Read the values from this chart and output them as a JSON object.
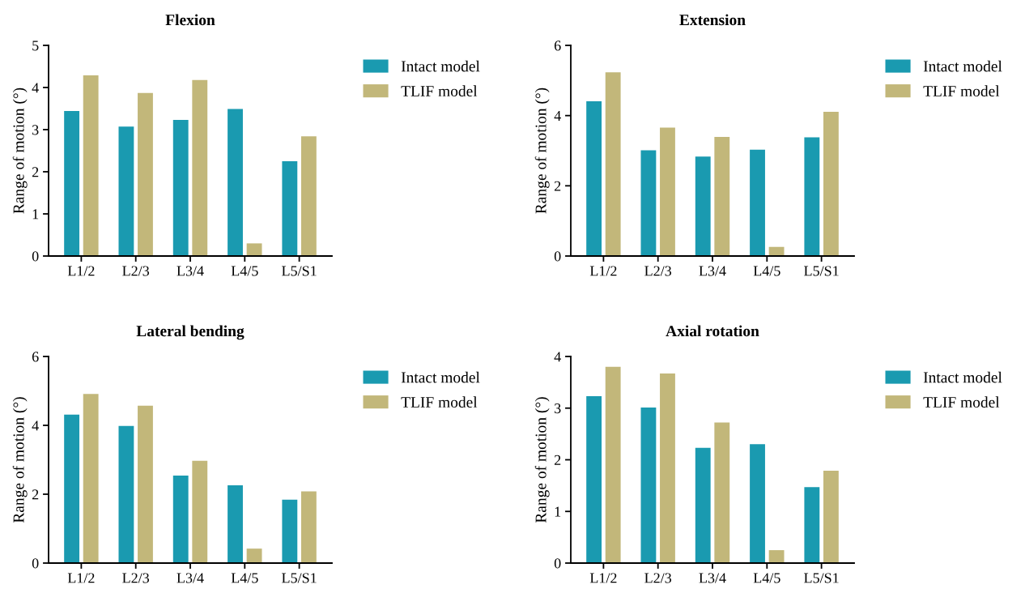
{
  "chart_data": [
    {
      "type": "bar",
      "title": "Flexion",
      "ylabel": "Range of motion (°)",
      "categories": [
        "L1/2",
        "L2/3",
        "L3/4",
        "L4/5",
        "L5/S1"
      ],
      "series": [
        {
          "name": "Intact model",
          "color": "#1a9ab0",
          "values": [
            3.44,
            3.07,
            3.23,
            3.49,
            2.25
          ]
        },
        {
          "name": "TLIF model",
          "color": "#c2b77a",
          "values": [
            4.29,
            3.87,
            4.18,
            0.3,
            2.84
          ]
        }
      ],
      "ylim": [
        0,
        5
      ],
      "yticks": [
        0,
        1,
        2,
        3,
        4,
        5
      ],
      "grid": false,
      "legend": "right"
    },
    {
      "type": "bar",
      "title": "Extension",
      "ylabel": "Range of motion (°)",
      "categories": [
        "L1/2",
        "L2/3",
        "L3/4",
        "L4/5",
        "L5/S1"
      ],
      "series": [
        {
          "name": "Intact model",
          "color": "#1a9ab0",
          "values": [
            4.41,
            3.01,
            2.83,
            3.03,
            3.38
          ]
        },
        {
          "name": "TLIF model",
          "color": "#c2b77a",
          "values": [
            5.23,
            3.66,
            3.39,
            0.26,
            4.11
          ]
        }
      ],
      "ylim": [
        0,
        6
      ],
      "yticks": [
        0,
        2,
        4,
        6
      ],
      "grid": false,
      "legend": "right"
    },
    {
      "type": "bar",
      "title": "Lateral bending",
      "ylabel": "Range of motion (°)",
      "categories": [
        "L1/2",
        "L2/3",
        "L3/4",
        "L4/5",
        "L5/S1"
      ],
      "series": [
        {
          "name": "Intact model",
          "color": "#1a9ab0",
          "values": [
            4.31,
            3.98,
            2.54,
            2.26,
            1.84
          ]
        },
        {
          "name": "TLIF model",
          "color": "#c2b77a",
          "values": [
            4.91,
            4.57,
            2.97,
            0.42,
            2.08
          ]
        }
      ],
      "ylim": [
        0,
        6
      ],
      "yticks": [
        0,
        2,
        4,
        6
      ],
      "grid": false,
      "legend": "right"
    },
    {
      "type": "bar",
      "title": "Axial rotation",
      "ylabel": "Range of motion (°)",
      "categories": [
        "L1/2",
        "L2/3",
        "L3/4",
        "L4/5",
        "L5/S1"
      ],
      "series": [
        {
          "name": "Intact model",
          "color": "#1a9ab0",
          "values": [
            3.23,
            3.01,
            2.23,
            2.3,
            1.47
          ]
        },
        {
          "name": "TLIF model",
          "color": "#c2b77a",
          "values": [
            3.8,
            3.67,
            2.72,
            0.25,
            1.79
          ]
        }
      ],
      "ylim": [
        0,
        4
      ],
      "yticks": [
        0,
        1,
        2,
        3,
        4
      ],
      "grid": false,
      "legend": "right"
    }
  ]
}
